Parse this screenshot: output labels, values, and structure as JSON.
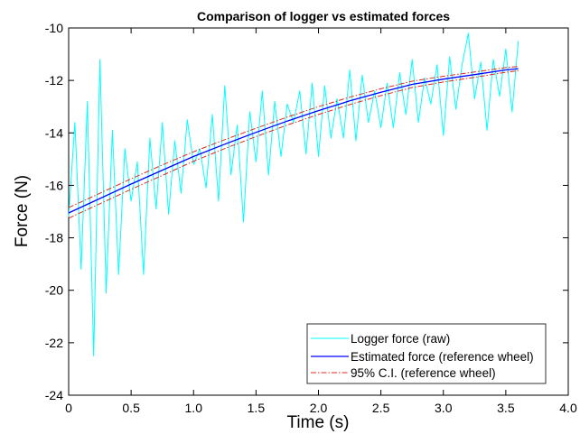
{
  "chart_data": {
    "type": "line",
    "title": "Comparison of logger vs estimated forces",
    "xlabel": "Time (s)",
    "ylabel": "Force (N)",
    "xlim": [
      0,
      4.0
    ],
    "ylim": [
      -24,
      -10
    ],
    "xticks": [
      0,
      0.5,
      1.0,
      1.5,
      2.0,
      2.5,
      3.0,
      3.5,
      4.0
    ],
    "xtick_labels": [
      "0",
      "0.5",
      "1.0",
      "1.5",
      "2.0",
      "2.5",
      "3.0",
      "3.5",
      "4.0"
    ],
    "yticks": [
      -24,
      -22,
      -20,
      -18,
      -16,
      -14,
      -12,
      -10
    ],
    "ytick_labels": [
      "-24",
      "-22",
      "-20",
      "-18",
      "-16",
      "-14",
      "-12",
      "-10"
    ],
    "grid": false,
    "legend_position": "bottom-right",
    "series": [
      {
        "name": "Logger force (raw)",
        "color": "#00ffff",
        "style": "solid",
        "x": [
          0.0,
          0.05,
          0.1,
          0.15,
          0.2,
          0.25,
          0.3,
          0.35,
          0.4,
          0.45,
          0.5,
          0.55,
          0.6,
          0.65,
          0.7,
          0.75,
          0.8,
          0.85,
          0.9,
          0.95,
          1.0,
          1.05,
          1.1,
          1.15,
          1.2,
          1.25,
          1.3,
          1.35,
          1.4,
          1.45,
          1.5,
          1.55,
          1.6,
          1.65,
          1.7,
          1.75,
          1.8,
          1.85,
          1.9,
          1.95,
          2.0,
          2.05,
          2.1,
          2.15,
          2.2,
          2.25,
          2.3,
          2.35,
          2.4,
          2.45,
          2.5,
          2.55,
          2.6,
          2.65,
          2.7,
          2.75,
          2.8,
          2.85,
          2.9,
          2.95,
          3.0,
          3.05,
          3.1,
          3.15,
          3.2,
          3.25,
          3.3,
          3.35,
          3.4,
          3.45,
          3.5,
          3.55,
          3.6
        ],
        "y": [
          -17.2,
          -13.6,
          -19.2,
          -12.8,
          -22.5,
          -11.2,
          -20.1,
          -13.9,
          -19.4,
          -14.6,
          -16.6,
          -15.1,
          -19.4,
          -14.2,
          -16.9,
          -13.6,
          -17.1,
          -14.3,
          -16.3,
          -13.5,
          -15.2,
          -14.6,
          -16.1,
          -13.3,
          -16.6,
          -12.2,
          -15.6,
          -13.7,
          -17.4,
          -13.2,
          -15.1,
          -12.4,
          -15.6,
          -12.8,
          -14.9,
          -12.9,
          -13.6,
          -12.4,
          -14.8,
          -12.1,
          -14.9,
          -12.2,
          -14.2,
          -12.7,
          -14.2,
          -11.6,
          -14.3,
          -11.8,
          -13.6,
          -12.4,
          -13.8,
          -12.1,
          -13.8,
          -11.7,
          -13.3,
          -11.2,
          -13.6,
          -11.9,
          -12.9,
          -11.4,
          -14.1,
          -11.1,
          -13.1,
          -11.4,
          -10.2,
          -12.7,
          -11.3,
          -13.9,
          -11.2,
          -12.6,
          -10.8,
          -13.2,
          -10.5
        ]
      },
      {
        "name": "Estimated force (reference wheel)",
        "color": "#0000ff",
        "style": "solid",
        "x": [
          0.0,
          0.25,
          0.5,
          0.75,
          1.0,
          1.25,
          1.5,
          1.75,
          2.0,
          2.25,
          2.5,
          2.75,
          3.0,
          3.25,
          3.5,
          3.6
        ],
        "y": [
          -17.05,
          -16.5,
          -15.95,
          -15.42,
          -14.9,
          -14.43,
          -13.98,
          -13.55,
          -13.15,
          -12.78,
          -12.45,
          -12.15,
          -11.95,
          -11.78,
          -11.6,
          -11.55
        ]
      },
      {
        "name": "95% C.I. (reference wheel)",
        "color": "#e0281e",
        "style": "dashdot",
        "x": [
          0.0,
          0.25,
          0.5,
          0.75,
          1.0,
          1.25,
          1.5,
          1.75,
          2.0,
          2.25,
          2.5,
          2.75,
          3.0,
          3.25,
          3.5,
          3.6
        ],
        "y_upper": [
          -16.85,
          -16.3,
          -15.75,
          -15.22,
          -14.72,
          -14.26,
          -13.82,
          -13.4,
          -13.0,
          -12.64,
          -12.32,
          -12.03,
          -11.84,
          -11.68,
          -11.51,
          -11.47
        ],
        "y_lower": [
          -17.25,
          -16.7,
          -16.15,
          -15.62,
          -15.08,
          -14.6,
          -14.14,
          -13.7,
          -13.3,
          -12.92,
          -12.58,
          -12.27,
          -12.06,
          -11.88,
          -11.69,
          -11.63
        ]
      }
    ]
  }
}
